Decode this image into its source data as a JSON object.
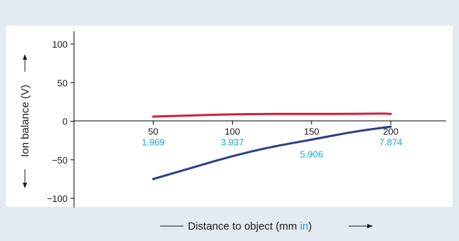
{
  "chart_data": {
    "type": "line",
    "xlabel_prefix": "Distance to object (mm ",
    "xlabel_accent": "in",
    "xlabel_suffix": ")",
    "ylabel": "Ion balance (V)",
    "xlim": [
      0,
      235
    ],
    "ylim": [
      -110,
      110
    ],
    "yticks": [
      100,
      50,
      0,
      -50,
      -100
    ],
    "ytick_labels": [
      "100",
      "50",
      "0",
      "−50",
      "−100"
    ],
    "xticks_mm": [
      50,
      100,
      150,
      200
    ],
    "xtick_labels_mm": [
      "50",
      "100",
      "150",
      "200"
    ],
    "xtick_labels_in": [
      "1.969",
      "3.937",
      "5.906",
      "7.874"
    ],
    "grid": false,
    "series": [
      {
        "color": "#d11f3c",
        "x": [
          50,
          75,
          100,
          125,
          150,
          175,
          195,
          200
        ],
        "y": [
          6,
          7.5,
          9,
          9.5,
          9.5,
          9.5,
          10,
          9.5
        ]
      },
      {
        "color": "#2c3e8c",
        "x": [
          50,
          75,
          100,
          125,
          150,
          175,
          200
        ],
        "y": [
          -75,
          -60,
          -45,
          -33,
          -24,
          -14,
          -7
        ]
      }
    ]
  }
}
